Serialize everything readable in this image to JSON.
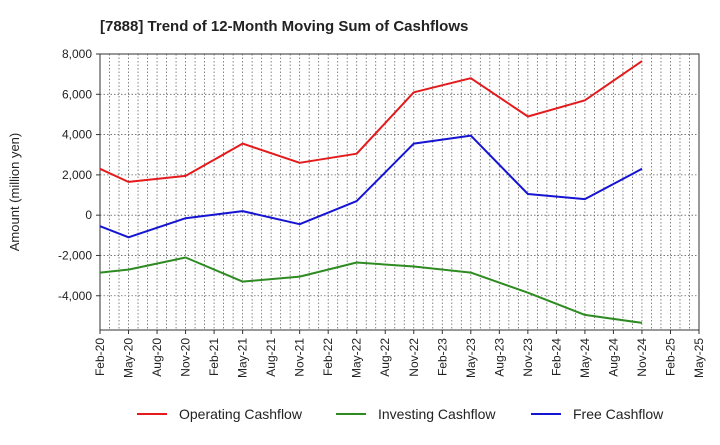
{
  "chart_data": {
    "type": "line",
    "title": "[7888]  Trend of 12-Month Moving Sum of Cashflows",
    "xlabel": "",
    "ylabel": "Amount (million yen)",
    "ylim": [
      -5700,
      8000
    ],
    "yticks": [
      8000,
      6000,
      4000,
      2000,
      0,
      -2000,
      -4000
    ],
    "ytick_labels": [
      "8,000",
      "6,000",
      "4,000",
      "2,000",
      "0",
      "-2,000",
      "-4,000"
    ],
    "categories": [
      "Feb-20",
      "May-20",
      "Aug-20",
      "Nov-20",
      "Feb-21",
      "May-21",
      "Aug-21",
      "Nov-21",
      "Feb-22",
      "May-22",
      "Aug-22",
      "Nov-22",
      "Feb-23",
      "May-23",
      "Aug-23",
      "Nov-23",
      "Feb-24",
      "May-24",
      "Aug-24",
      "Nov-24",
      "Feb-25",
      "May-25"
    ],
    "grid": true,
    "legend_position": "bottom",
    "series": [
      {
        "name": "Operating Cashflow",
        "color": "#e41a1c",
        "values": [
          2300,
          1650,
          null,
          1950,
          null,
          3550,
          null,
          2600,
          null,
          3050,
          null,
          6100,
          null,
          6800,
          null,
          4900,
          null,
          5700,
          null,
          7650,
          null,
          null
        ]
      },
      {
        "name": "Investing Cashflow",
        "color": "#2e8b22",
        "values": [
          -2850,
          -2700,
          null,
          -2100,
          null,
          -3300,
          null,
          -3050,
          null,
          -2350,
          null,
          -2550,
          null,
          -2850,
          null,
          -3850,
          null,
          -4950,
          null,
          -5350,
          null,
          null
        ]
      },
      {
        "name": "Free Cashflow",
        "color": "#1414d2",
        "values": [
          -550,
          -1100,
          null,
          -150,
          null,
          200,
          null,
          -450,
          null,
          700,
          null,
          3550,
          null,
          3950,
          null,
          1050,
          null,
          800,
          null,
          2300,
          null,
          null
        ]
      }
    ]
  }
}
